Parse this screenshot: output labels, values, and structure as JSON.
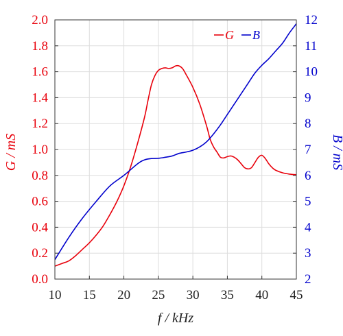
{
  "chart_data": {
    "type": "line",
    "xlabel": "f / kHz",
    "ylabel_left": "G / mS",
    "ylabel_right": "B / mS",
    "xlim": [
      10,
      45
    ],
    "ylim_left": [
      0,
      2
    ],
    "ylim_right": [
      2,
      12
    ],
    "x_ticks": [
      10,
      15,
      20,
      25,
      30,
      35,
      40,
      45
    ],
    "y_left_ticks": [
      0,
      0.2,
      0.4,
      0.6,
      0.8,
      1.0,
      1.2,
      1.4,
      1.6,
      1.8,
      2.0
    ],
    "y_left_tick_labels": [
      "0.0",
      "0.2",
      "0.4",
      "0.6",
      "0.8",
      "1.0",
      "1.2",
      "1.4",
      "1.6",
      "1.8",
      "2.0"
    ],
    "y_right_ticks": [
      2,
      3,
      4,
      5,
      6,
      7,
      8,
      9,
      10,
      11,
      12
    ],
    "grid": true,
    "legend_position": "top-right",
    "colors": {
      "left_axis": "#e8000b",
      "right_axis": "#0000cc"
    },
    "series": [
      {
        "name": "G",
        "axis": "left",
        "color": "#e8000b",
        "x": [
          10,
          11,
          12,
          13,
          14,
          15,
          16,
          17,
          18,
          19,
          20,
          21,
          22,
          23,
          23.5,
          24,
          24.5,
          25,
          25.5,
          26,
          26.5,
          27,
          27.5,
          28,
          28.5,
          29,
          30,
          31,
          32,
          32.5,
          33,
          33.5,
          34,
          34.5,
          35,
          35.5,
          36,
          36.5,
          37,
          37.5,
          38,
          38.5,
          39,
          39.5,
          40,
          40.5,
          41,
          41.5,
          42,
          43,
          44,
          45
        ],
        "values": [
          0.1,
          0.12,
          0.14,
          0.18,
          0.23,
          0.28,
          0.34,
          0.41,
          0.5,
          0.6,
          0.72,
          0.87,
          1.05,
          1.25,
          1.38,
          1.5,
          1.57,
          1.61,
          1.625,
          1.63,
          1.625,
          1.63,
          1.645,
          1.645,
          1.625,
          1.58,
          1.48,
          1.35,
          1.18,
          1.08,
          1.02,
          0.98,
          0.94,
          0.935,
          0.945,
          0.95,
          0.94,
          0.92,
          0.89,
          0.86,
          0.85,
          0.86,
          0.9,
          0.94,
          0.955,
          0.93,
          0.89,
          0.86,
          0.84,
          0.82,
          0.81,
          0.805
        ]
      },
      {
        "name": "B",
        "axis": "right",
        "color": "#0000cc",
        "x": [
          10,
          12,
          14,
          16,
          18,
          20,
          22,
          23,
          24,
          25,
          26,
          27,
          28,
          29,
          30,
          31,
          32,
          33,
          34,
          35,
          36,
          37,
          38,
          39,
          40,
          41,
          42,
          43,
          44,
          45
        ],
        "values": [
          2.75,
          3.6,
          4.35,
          5.0,
          5.6,
          6.0,
          6.45,
          6.6,
          6.65,
          6.66,
          6.7,
          6.75,
          6.85,
          6.9,
          6.97,
          7.1,
          7.3,
          7.6,
          7.95,
          8.35,
          8.75,
          9.15,
          9.55,
          9.95,
          10.25,
          10.5,
          10.8,
          11.1,
          11.5,
          11.85
        ]
      }
    ]
  }
}
